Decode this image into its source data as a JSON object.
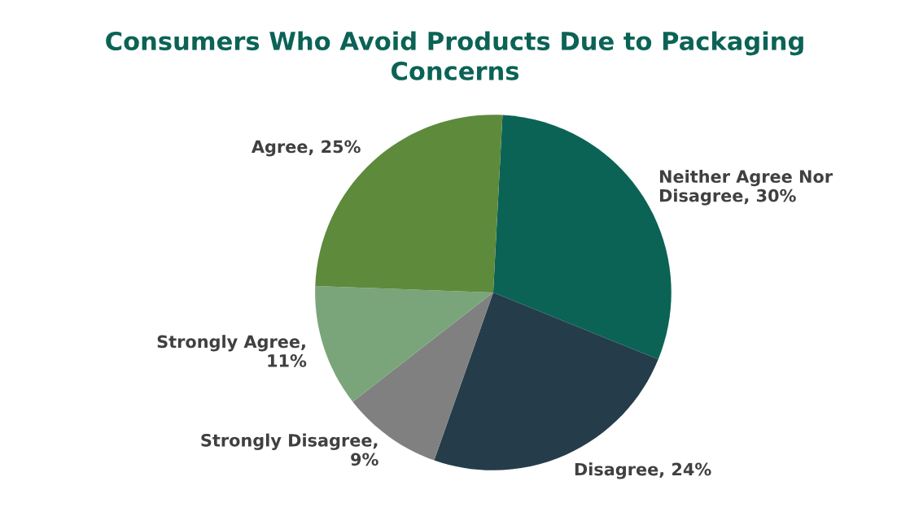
{
  "chart_data": {
    "type": "pie",
    "title": "Consumers Who Avoid Products Due to Packaging Concerns",
    "categories": [
      "Neither Agree Nor Disagree",
      "Disagree",
      "Strongly Disagree",
      "Strongly Agree",
      "Agree"
    ],
    "values": [
      30,
      24,
      9,
      11,
      25
    ],
    "value_labels": [
      ", 30%",
      ", 24%",
      ", 9%",
      ", 11%",
      ", 25%"
    ],
    "colors": [
      "#0b6355",
      "#253d4a",
      "#808080",
      "#7aa57a",
      "#5e8a3c"
    ]
  }
}
